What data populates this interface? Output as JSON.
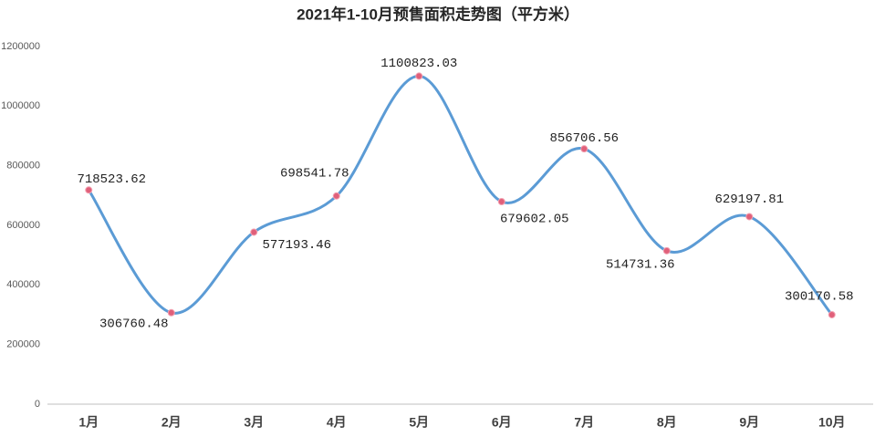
{
  "chart_data": {
    "type": "line",
    "title": "2021年1-10月预售面积走势图（平方米）",
    "categories": [
      "1月",
      "2月",
      "3月",
      "4月",
      "5月",
      "6月",
      "7月",
      "8月",
      "9月",
      "10月"
    ],
    "series": [
      {
        "name": "预售面积",
        "color": "#5b9bd5",
        "marker_color": "#e0607a",
        "values": [
          718523.62,
          306760.48,
          577193.46,
          698541.78,
          1100823.03,
          679602.05,
          856706.56,
          514731.36,
          629197.81,
          300170.58
        ]
      }
    ],
    "ylim": [
      0,
      1200000
    ],
    "yticks": [
      0,
      200000,
      400000,
      600000,
      800000,
      1000000,
      1200000
    ],
    "grid": false,
    "smooth": true
  }
}
